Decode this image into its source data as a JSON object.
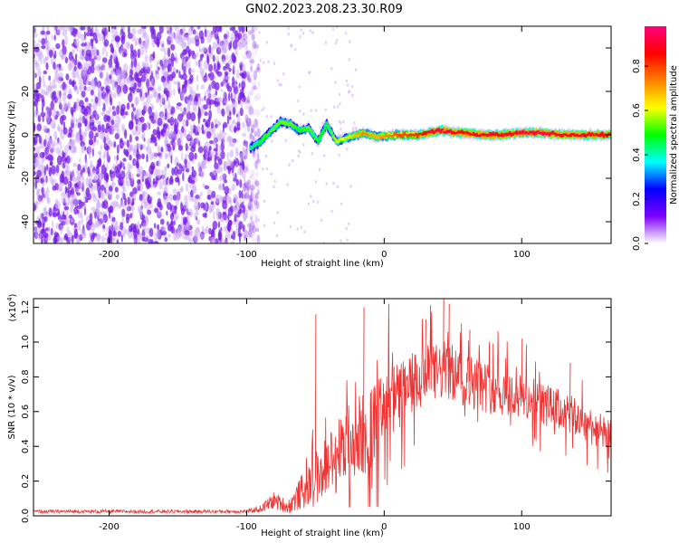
{
  "title": "GN02.2023.208.23.30.R09",
  "colors": {
    "speckle": "#7a1fe8",
    "speckle_light": "#c9a6f5",
    "snr_line": "#ef3232",
    "axis": "#000000"
  },
  "chart_data": [
    {
      "type": "heatmap",
      "xlabel": "Height of straight line (km)",
      "ylabel": "Frequency (Hz)",
      "xlim": [
        -255,
        165
      ],
      "ylim": [
        -50,
        50
      ],
      "xticks": [
        -200,
        -100,
        0,
        100
      ],
      "yticks": [
        -40,
        -20,
        0,
        20,
        40
      ],
      "noise_until_x": -95,
      "ridge": [
        {
          "x": -97,
          "y": -6,
          "a": 0.45
        },
        {
          "x": -90,
          "y": -3,
          "a": 0.5
        },
        {
          "x": -80,
          "y": 3,
          "a": 0.55
        },
        {
          "x": -75,
          "y": 6,
          "a": 0.55
        },
        {
          "x": -68,
          "y": 5,
          "a": 0.55
        },
        {
          "x": -62,
          "y": 2,
          "a": 0.5
        },
        {
          "x": -55,
          "y": 3,
          "a": 0.55
        },
        {
          "x": -48,
          "y": -3,
          "a": 0.5
        },
        {
          "x": -42,
          "y": 5,
          "a": 0.5
        },
        {
          "x": -35,
          "y": -3,
          "a": 0.6
        },
        {
          "x": -25,
          "y": -1,
          "a": 0.65
        },
        {
          "x": -15,
          "y": 1,
          "a": 0.75
        },
        {
          "x": -5,
          "y": -1,
          "a": 0.7
        },
        {
          "x": 10,
          "y": 0,
          "a": 0.8
        },
        {
          "x": 25,
          "y": 0,
          "a": 0.85
        },
        {
          "x": 40,
          "y": 2,
          "a": 0.95
        },
        {
          "x": 55,
          "y": 1,
          "a": 0.9
        },
        {
          "x": 70,
          "y": 0,
          "a": 0.9
        },
        {
          "x": 85,
          "y": 0,
          "a": 0.9
        },
        {
          "x": 100,
          "y": 1,
          "a": 0.95
        },
        {
          "x": 115,
          "y": 1,
          "a": 0.95
        },
        {
          "x": 130,
          "y": 0,
          "a": 0.9
        },
        {
          "x": 145,
          "y": 0,
          "a": 0.9
        },
        {
          "x": 165,
          "y": 0,
          "a": 0.9
        }
      ],
      "colorbar": {
        "label": "Normalized spectral amplitude",
        "ticks": [
          0.0,
          0.2,
          0.4,
          0.6,
          0.8
        ],
        "range": [
          0,
          0.98
        ],
        "stops": [
          "#ffffff",
          "#7d00ff",
          "#0000ff",
          "#00ffff",
          "#00ff00",
          "#ffff00",
          "#ff7f00",
          "#ff0000",
          "#ff007f"
        ]
      }
    },
    {
      "type": "line",
      "xlabel": "Height of straight line (km)",
      "ylabel": "SNR (10 * v/v)",
      "multiplier": "(x10",
      "multiplier_exp": "4",
      "multiplier_close": ")",
      "xlim": [
        -255,
        165
      ],
      "ylim": [
        0,
        1.25
      ],
      "xticks": [
        -200,
        -100,
        0,
        100
      ],
      "yticks": [
        0.0,
        0.2,
        0.4,
        0.6,
        0.8,
        1.0,
        1.2
      ],
      "envelope": [
        {
          "x": -255,
          "mean": 0.025,
          "spread": 0.01
        },
        {
          "x": -100,
          "mean": 0.025,
          "spread": 0.01
        },
        {
          "x": -90,
          "mean": 0.04,
          "spread": 0.02
        },
        {
          "x": -80,
          "mean": 0.09,
          "spread": 0.05
        },
        {
          "x": -70,
          "mean": 0.05,
          "spread": 0.04
        },
        {
          "x": -55,
          "mean": 0.18,
          "spread": 0.13
        },
        {
          "x": -40,
          "mean": 0.3,
          "spread": 0.2
        },
        {
          "x": -25,
          "mean": 0.42,
          "spread": 0.25
        },
        {
          "x": -10,
          "mean": 0.5,
          "spread": 0.25
        },
        {
          "x": 0,
          "mean": 0.6,
          "spread": 0.23
        },
        {
          "x": 15,
          "mean": 0.72,
          "spread": 0.2
        },
        {
          "x": 30,
          "mean": 0.8,
          "spread": 0.18
        },
        {
          "x": 45,
          "mean": 0.84,
          "spread": 0.17
        },
        {
          "x": 60,
          "mean": 0.78,
          "spread": 0.16
        },
        {
          "x": 75,
          "mean": 0.74,
          "spread": 0.15
        },
        {
          "x": 90,
          "mean": 0.7,
          "spread": 0.14
        },
        {
          "x": 110,
          "mean": 0.66,
          "spread": 0.13
        },
        {
          "x": 130,
          "mean": 0.6,
          "spread": 0.12
        },
        {
          "x": 150,
          "mean": 0.52,
          "spread": 0.11
        },
        {
          "x": 165,
          "mean": 0.45,
          "spread": 0.1
        }
      ],
      "peaks": [
        {
          "x": -50,
          "y": 1.16
        },
        {
          "x": -15,
          "y": 1.2
        },
        {
          "x": 3,
          "y": 1.22
        },
        {
          "x": 30,
          "y": 1.13
        },
        {
          "x": 43,
          "y": 1.25
        },
        {
          "x": 47,
          "y": 1.22
        },
        {
          "x": 62,
          "y": 1.07
        },
        {
          "x": 100,
          "y": 1.02
        },
        {
          "x": 135,
          "y": 0.88
        }
      ]
    }
  ]
}
